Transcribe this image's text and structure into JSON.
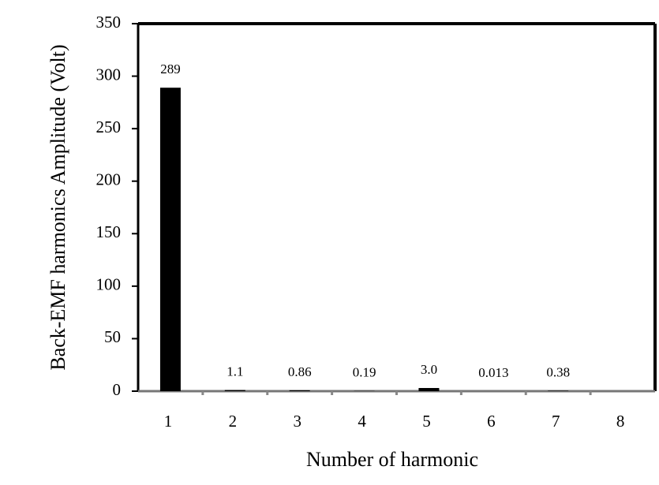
{
  "chart_data": {
    "type": "bar",
    "x_label": "Number of harmonic",
    "y_label": "Back-EMF harmonics Amplitude (Volt)",
    "categories": [
      "1",
      "2",
      "3",
      "4",
      "5",
      "6",
      "7",
      "8"
    ],
    "values": [
      289,
      1.1,
      0.86,
      0.19,
      3,
      0.013,
      0.38,
      null
    ],
    "value_labels": [
      "289",
      "1.1",
      "0.86",
      "0.19",
      "3.0",
      "0.013",
      "0.38",
      null
    ],
    "color": "#000000",
    "ylim": [
      0,
      350
    ],
    "yticks": [
      0,
      50,
      100,
      150,
      200,
      250,
      300,
      350
    ],
    "grid": false
  }
}
